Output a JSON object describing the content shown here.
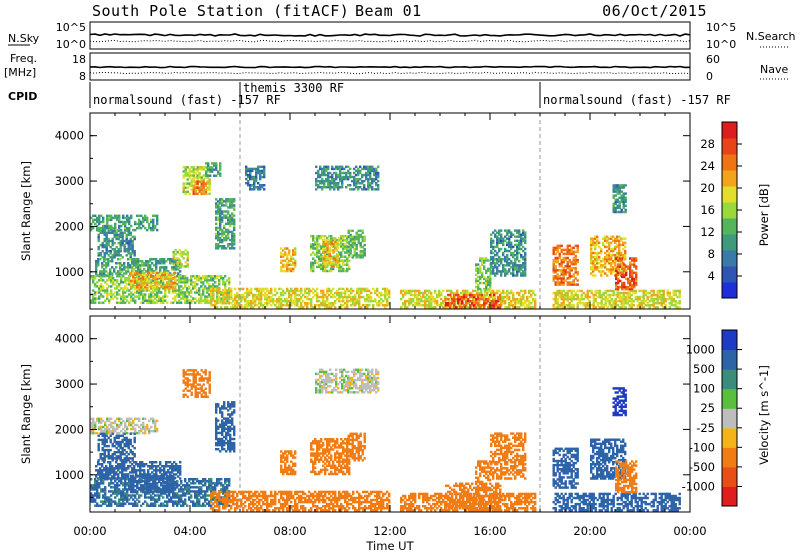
{
  "header": {
    "station": "South Pole Station (fitACF)",
    "beam": "Beam 01",
    "date": "06/Oct/2015"
  },
  "strips": {
    "nsky_label": "N.Sky",
    "nsearch_label": "N.Search",
    "freq_label_top": "Freq.",
    "freq_label_unit": "[MHz]",
    "nave_label": "Nave",
    "cpid_label": "CPID",
    "nsky_ticks": [
      "10^5",
      "10^0"
    ],
    "nsearch_ticks": [
      "10^5",
      "10^0"
    ],
    "freq_ticks": [
      "18",
      "8"
    ],
    "nave_ticks": [
      "60",
      "0"
    ],
    "cpid_segments": [
      {
        "label": "normalsound (fast) -157 RF",
        "start_hour": 0,
        "end_hour": 6
      },
      {
        "label": "themis 3300 RF",
        "start_hour": 6,
        "end_hour": 18
      },
      {
        "label": "normalsound (fast) -157 RF",
        "start_hour": 18,
        "end_hour": 24
      }
    ]
  },
  "axes": {
    "ylabel": "Slant Range [km]",
    "yticks": [
      "1000",
      "2000",
      "3000",
      "4000"
    ],
    "xlabel": "Time UT",
    "xticks": [
      "00:00",
      "04:00",
      "08:00",
      "12:00",
      "16:00",
      "20:00",
      "00:00"
    ]
  },
  "power_scale": {
    "label": "Power [dB]",
    "ticks": [
      "4",
      "8",
      "12",
      "16",
      "20",
      "24",
      "28"
    ],
    "colors": [
      "#1e2fd8",
      "#2f55b4",
      "#3a7aa8",
      "#3e9a7a",
      "#55b55a",
      "#9ad93c",
      "#e3dd2c",
      "#f2a41c",
      "#f07414",
      "#e8441a",
      "#dc1e1e"
    ]
  },
  "velocity_scale": {
    "label": "Velocity [m s^-1]",
    "ticks": [
      "1000",
      "500",
      "100",
      "25",
      "-25",
      "-100",
      "-500",
      "-1000"
    ],
    "colors": [
      "#1e3bc4",
      "#2d64a8",
      "#3b8c7a",
      "#5bbf3e",
      "#bdbdbd",
      "#f5b31a",
      "#f07c16",
      "#e84e18",
      "#e01e1e"
    ]
  },
  "chart_data": [
    {
      "type": "heatmap",
      "panel": "power",
      "xlabel": "Time UT",
      "ylabel": "Slant Range [km]",
      "xlim": [
        0,
        24
      ],
      "ylim": [
        180,
        4500
      ],
      "colorbar_label": "Power [dB]",
      "colorbar_range": [
        0,
        30
      ],
      "regions": [
        {
          "t0": 0.0,
          "t1": 2.7,
          "r0": 1900,
          "r1": 2250,
          "value": 10
        },
        {
          "t0": 0.3,
          "t1": 1.8,
          "r0": 1300,
          "r1": 1900,
          "value": 8
        },
        {
          "t0": 0.2,
          "t1": 3.6,
          "r0": 900,
          "r1": 1300,
          "value": 10
        },
        {
          "t0": 0.0,
          "t1": 5.6,
          "r0": 300,
          "r1": 900,
          "value": 14
        },
        {
          "t0": 1.6,
          "t1": 3.4,
          "r0": 600,
          "r1": 1000,
          "value": 20
        },
        {
          "t0": 3.3,
          "t1": 3.9,
          "r0": 1100,
          "r1": 1500,
          "value": 16
        },
        {
          "t0": 3.7,
          "t1": 4.8,
          "r0": 2700,
          "r1": 3300,
          "value": 16
        },
        {
          "t0": 4.1,
          "t1": 4.6,
          "r0": 2700,
          "r1": 3000,
          "value": 24
        },
        {
          "t0": 4.6,
          "t1": 5.2,
          "r0": 3100,
          "r1": 3400,
          "value": 8
        },
        {
          "t0": 5.0,
          "t1": 5.8,
          "r0": 1500,
          "r1": 2600,
          "value": 10
        },
        {
          "t0": 4.8,
          "t1": 12.0,
          "r0": 200,
          "r1": 650,
          "value": 18
        },
        {
          "t0": 6.2,
          "t1": 7.0,
          "r0": 2800,
          "r1": 3300,
          "value": 6
        },
        {
          "t0": 7.6,
          "t1": 8.2,
          "r0": 1000,
          "r1": 1500,
          "value": 20
        },
        {
          "t0": 8.8,
          "t1": 10.4,
          "r0": 1000,
          "r1": 1800,
          "value": 14
        },
        {
          "t0": 9.3,
          "t1": 9.9,
          "r0": 1100,
          "r1": 1700,
          "value": 20
        },
        {
          "t0": 10.3,
          "t1": 11.0,
          "r0": 1300,
          "r1": 1900,
          "value": 12
        },
        {
          "t0": 9.0,
          "t1": 11.5,
          "r0": 2800,
          "r1": 3300,
          "value": 8
        },
        {
          "t0": 12.4,
          "t1": 17.8,
          "r0": 200,
          "r1": 600,
          "value": 18
        },
        {
          "t0": 14.2,
          "t1": 16.4,
          "r0": 200,
          "r1": 500,
          "value": 26
        },
        {
          "t0": 15.4,
          "t1": 16.0,
          "r0": 600,
          "r1": 1300,
          "value": 14
        },
        {
          "t0": 16.0,
          "t1": 17.4,
          "r0": 900,
          "r1": 1900,
          "value": 8
        },
        {
          "t0": 18.5,
          "t1": 19.5,
          "r0": 700,
          "r1": 1600,
          "value": 24
        },
        {
          "t0": 18.5,
          "t1": 23.6,
          "r0": 200,
          "r1": 600,
          "value": 18
        },
        {
          "t0": 20.0,
          "t1": 21.4,
          "r0": 900,
          "r1": 1800,
          "value": 20
        },
        {
          "t0": 21.0,
          "t1": 21.8,
          "r0": 600,
          "r1": 1300,
          "value": 26
        },
        {
          "t0": 20.9,
          "t1": 21.4,
          "r0": 2300,
          "r1": 2900,
          "value": 8
        }
      ]
    },
    {
      "type": "heatmap",
      "panel": "velocity",
      "xlabel": "Time UT",
      "ylabel": "Slant Range [km]",
      "xlim": [
        0,
        24
      ],
      "ylim": [
        180,
        4500
      ],
      "colorbar_label": "Velocity [m s^-1]",
      "colorbar_range": [
        -1000,
        1000
      ],
      "regions": [
        {
          "t0": 0.0,
          "t1": 2.7,
          "r0": 1900,
          "r1": 2250,
          "value": 0
        },
        {
          "t0": 0.3,
          "t1": 1.8,
          "r0": 1300,
          "r1": 1900,
          "value": 150
        },
        {
          "t0": 0.2,
          "t1": 3.6,
          "r0": 900,
          "r1": 1300,
          "value": 150
        },
        {
          "t0": 0.0,
          "t1": 5.6,
          "r0": 300,
          "r1": 900,
          "value": 120
        },
        {
          "t0": 1.6,
          "t1": 3.4,
          "r0": 600,
          "r1": 1000,
          "value": 200
        },
        {
          "t0": 3.7,
          "t1": 4.8,
          "r0": 2700,
          "r1": 3300,
          "value": -200
        },
        {
          "t0": 5.0,
          "t1": 5.8,
          "r0": 1500,
          "r1": 2600,
          "value": 150
        },
        {
          "t0": 4.8,
          "t1": 12.0,
          "r0": 200,
          "r1": 650,
          "value": -200
        },
        {
          "t0": 7.6,
          "t1": 8.2,
          "r0": 1000,
          "r1": 1500,
          "value": -200
        },
        {
          "t0": 8.8,
          "t1": 10.4,
          "r0": 1000,
          "r1": 1800,
          "value": -200
        },
        {
          "t0": 10.3,
          "t1": 11.0,
          "r0": 1300,
          "r1": 1900,
          "value": -150
        },
        {
          "t0": 9.0,
          "t1": 11.5,
          "r0": 2800,
          "r1": 3300,
          "value": 0
        },
        {
          "t0": 12.4,
          "t1": 17.8,
          "r0": 200,
          "r1": 600,
          "value": -200
        },
        {
          "t0": 14.2,
          "t1": 16.4,
          "r0": 200,
          "r1": 800,
          "value": -300
        },
        {
          "t0": 15.4,
          "t1": 16.0,
          "r0": 600,
          "r1": 1300,
          "value": -150
        },
        {
          "t0": 16.0,
          "t1": 17.4,
          "r0": 900,
          "r1": 1900,
          "value": -150
        },
        {
          "t0": 18.5,
          "t1": 19.5,
          "r0": 700,
          "r1": 1600,
          "value": 200
        },
        {
          "t0": 18.5,
          "t1": 23.6,
          "r0": 200,
          "r1": 600,
          "value": 150
        },
        {
          "t0": 20.0,
          "t1": 21.4,
          "r0": 900,
          "r1": 1800,
          "value": 200
        },
        {
          "t0": 21.0,
          "t1": 21.8,
          "r0": 600,
          "r1": 1300,
          "value": -150
        },
        {
          "t0": 20.9,
          "t1": 21.4,
          "r0": 2300,
          "r1": 2900,
          "value": 600
        }
      ]
    }
  ]
}
